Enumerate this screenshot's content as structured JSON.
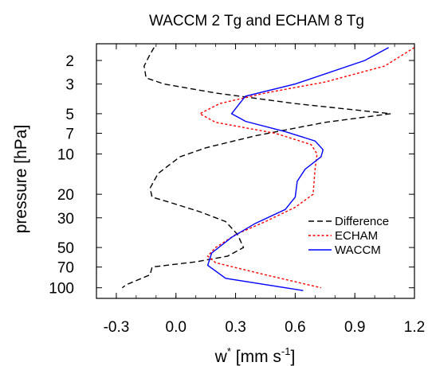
{
  "chart_data": {
    "type": "line",
    "title": "WACCM 2 Tg and ECHAM 8 Tg",
    "xlabel": {
      "base": "w",
      "sup1": "*",
      "mid": " [mm s",
      "sup2": "-1",
      "end": "]"
    },
    "ylabel": "pressure [hPa]",
    "xlim": [
      -0.4,
      1.2
    ],
    "ylim": [
      120,
      1.5
    ],
    "y_scale": "log",
    "x_ticks": [
      -0.3,
      0.0,
      0.3,
      0.6,
      0.9,
      1.2
    ],
    "x_tick_labels": [
      "-0.3",
      "0.0",
      "0.3",
      "0.6",
      "0.9",
      "1.2"
    ],
    "y_ticks": [
      2,
      3,
      5,
      7,
      10,
      20,
      30,
      50,
      70,
      100
    ],
    "y_tick_labels": [
      "2",
      "3",
      "5",
      "7",
      "10",
      "20",
      "30",
      "50",
      "70",
      "100"
    ],
    "grid": false,
    "legend_position": "bottom-right",
    "series": [
      {
        "name": "Difference",
        "color": "#000000",
        "dash": "dashed",
        "points": [
          [
            -0.11,
            1.6
          ],
          [
            -0.13,
            1.8
          ],
          [
            -0.16,
            2.2
          ],
          [
            -0.15,
            2.7
          ],
          [
            -0.06,
            3.0
          ],
          [
            0.2,
            3.5
          ],
          [
            0.6,
            4.2
          ],
          [
            1.08,
            5.0
          ],
          [
            0.75,
            5.8
          ],
          [
            0.4,
            7.3
          ],
          [
            0.15,
            9.0
          ],
          [
            0.02,
            10.5
          ],
          [
            -0.09,
            14.0
          ],
          [
            -0.13,
            18.0
          ],
          [
            -0.12,
            21.0
          ],
          [
            -0.03,
            23.0
          ],
          [
            0.12,
            27.0
          ],
          [
            0.25,
            32.0
          ],
          [
            0.31,
            40.0
          ],
          [
            0.34,
            50.0
          ],
          [
            0.26,
            58.0
          ],
          [
            0.1,
            64.0
          ],
          [
            -0.12,
            70.0
          ],
          [
            -0.13,
            80.0
          ],
          [
            -0.25,
            95.0
          ],
          [
            -0.27,
            100.0
          ]
        ]
      },
      {
        "name": "ECHAM",
        "color": "#ff0000",
        "dash": "dotted",
        "points": [
          [
            1.2,
            1.6
          ],
          [
            1.05,
            2.2
          ],
          [
            0.75,
            2.9
          ],
          [
            0.45,
            3.5
          ],
          [
            0.22,
            4.2
          ],
          [
            0.12,
            5.0
          ],
          [
            0.2,
            5.8
          ],
          [
            0.5,
            7.0
          ],
          [
            0.68,
            8.5
          ],
          [
            0.71,
            10.0
          ],
          [
            0.7,
            13.0
          ],
          [
            0.69,
            20.0
          ],
          [
            0.6,
            25.0
          ],
          [
            0.45,
            32.0
          ],
          [
            0.3,
            40.0
          ],
          [
            0.2,
            50.0
          ],
          [
            0.16,
            58.0
          ],
          [
            0.2,
            65.0
          ],
          [
            0.45,
            80.0
          ],
          [
            0.73,
            100.0
          ]
        ]
      },
      {
        "name": "WACCM",
        "color": "#0000ff",
        "dash": "solid",
        "points": [
          [
            1.07,
            1.6
          ],
          [
            0.95,
            2.0
          ],
          [
            0.6,
            3.0
          ],
          [
            0.35,
            3.7
          ],
          [
            0.32,
            4.2
          ],
          [
            0.28,
            5.0
          ],
          [
            0.35,
            5.7
          ],
          [
            0.55,
            6.8
          ],
          [
            0.7,
            8.0
          ],
          [
            0.74,
            9.3
          ],
          [
            0.73,
            10.5
          ],
          [
            0.65,
            13.0
          ],
          [
            0.61,
            16.0
          ],
          [
            0.6,
            21.0
          ],
          [
            0.55,
            26.0
          ],
          [
            0.4,
            33.0
          ],
          [
            0.28,
            42.0
          ],
          [
            0.18,
            55.0
          ],
          [
            0.16,
            68.0
          ],
          [
            0.25,
            85.0
          ],
          [
            0.64,
            105.0
          ]
        ]
      }
    ]
  }
}
